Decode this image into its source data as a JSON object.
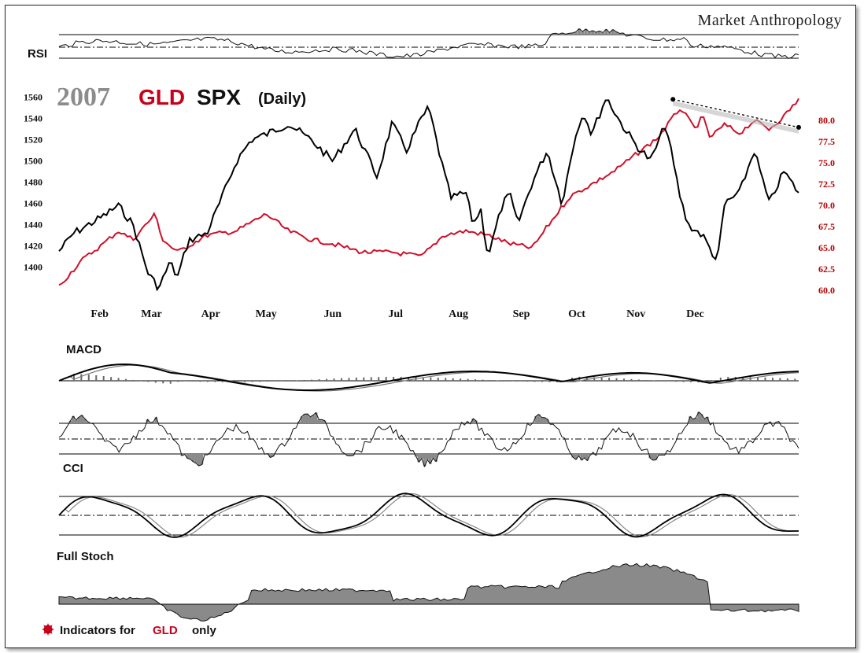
{
  "brand": "Market Anthropology",
  "title": {
    "year": "2007",
    "gld": "GLD",
    "spx": "SPX",
    "period": "(Daily)"
  },
  "panels": {
    "rsi": "RSI",
    "macd": "MACD",
    "cci": "CCI",
    "stoch": "Full Stoch"
  },
  "footnote": {
    "prefix": "Indicators for",
    "ticker": "GLD",
    "suffix": "only"
  },
  "colors": {
    "spx": "#000000",
    "gld": "#d0102a",
    "fill": "#8a8a8a",
    "trend": "#000000"
  },
  "chart_data": {
    "type": "line",
    "months": [
      "Feb",
      "Mar",
      "Apr",
      "May",
      "Jun",
      "Jul",
      "Aug",
      "Sep",
      "Oct",
      "Nov",
      "Dec"
    ],
    "left_axis": {
      "label": "SPX",
      "ticks": [
        "1560",
        "1540",
        "1520",
        "1500",
        "1480",
        "1460",
        "1440",
        "1420",
        "1400"
      ],
      "ylim": [
        1370,
        1570
      ]
    },
    "right_axis": {
      "label": "GLD",
      "ticks": [
        "80.0",
        "77.5",
        "75.0",
        "72.5",
        "70.0",
        "67.5",
        "65.0",
        "62.5",
        "60.0"
      ],
      "ylim": [
        59,
        84
      ]
    },
    "series": [
      {
        "name": "SPX",
        "x": [
          0,
          0.02,
          0.04,
          0.06,
          0.08,
          0.1,
          0.12,
          0.135,
          0.15,
          0.16,
          0.175,
          0.2,
          0.22,
          0.24,
          0.26,
          0.28,
          0.31,
          0.34,
          0.37,
          0.4,
          0.43,
          0.45,
          0.47,
          0.49,
          0.5,
          0.52,
          0.53,
          0.55,
          0.56,
          0.57,
          0.58,
          0.6,
          0.61,
          0.62,
          0.64,
          0.66,
          0.68,
          0.7,
          0.71,
          0.72,
          0.74,
          0.76,
          0.78,
          0.8,
          0.82,
          0.84,
          0.85,
          0.87,
          0.89,
          0.9,
          0.92,
          0.94,
          0.96,
          0.98,
          1.0
        ],
        "values": [
          1415,
          1432,
          1440,
          1448,
          1458,
          1440,
          1395,
          1380,
          1405,
          1390,
          1425,
          1432,
          1465,
          1500,
          1520,
          1525,
          1535,
          1520,
          1500,
          1530,
          1485,
          1535,
          1510,
          1540,
          1550,
          1490,
          1465,
          1470,
          1440,
          1455,
          1410,
          1460,
          1468,
          1440,
          1480,
          1510,
          1460,
          1530,
          1545,
          1525,
          1560,
          1535,
          1515,
          1500,
          1535,
          1465,
          1440,
          1430,
          1405,
          1460,
          1470,
          1510,
          1460,
          1490,
          1470
        ]
      },
      {
        "name": "GLD",
        "x": [
          0,
          0.03,
          0.06,
          0.08,
          0.1,
          0.13,
          0.14,
          0.16,
          0.2,
          0.24,
          0.28,
          0.31,
          0.34,
          0.37,
          0.41,
          0.45,
          0.49,
          0.52,
          0.55,
          0.58,
          0.61,
          0.64,
          0.66,
          0.69,
          0.72,
          0.75,
          0.78,
          0.81,
          0.84,
          0.86,
          0.87,
          0.88,
          0.9,
          0.92,
          0.94,
          0.96,
          0.98,
          1.0
        ],
        "values": [
          60.5,
          63.5,
          65.5,
          67,
          66,
          69,
          66,
          64.5,
          66.5,
          67,
          69,
          67,
          66,
          65.5,
          64.5,
          64.5,
          64.0,
          66.5,
          67,
          66.5,
          65.5,
          65.0,
          67.5,
          71,
          72.5,
          74,
          76,
          78,
          81.5,
          79,
          80.5,
          78,
          79.5,
          78.5,
          80,
          79,
          80.5,
          82.5
        ]
      }
    ],
    "trendline": {
      "x": [
        0.83,
        1.0
      ],
      "values": [
        82.5,
        79.2
      ]
    },
    "grid": false
  }
}
